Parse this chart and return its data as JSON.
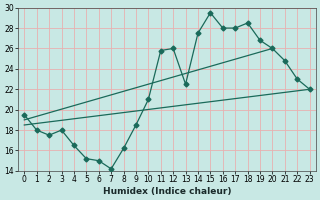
{
  "xlabel": "Humidex (Indice chaleur)",
  "background_color": "#c8e8e4",
  "grid_color": "#e8b0b0",
  "line_color": "#1a6a5a",
  "xlim": [
    -0.5,
    23.5
  ],
  "ylim": [
    14,
    30
  ],
  "xticks": [
    0,
    1,
    2,
    3,
    4,
    5,
    6,
    7,
    8,
    9,
    10,
    11,
    12,
    13,
    14,
    15,
    16,
    17,
    18,
    19,
    20,
    21,
    22,
    23
  ],
  "yticks": [
    14,
    16,
    18,
    20,
    22,
    24,
    26,
    28,
    30
  ],
  "x_main": [
    0,
    1,
    2,
    3,
    4,
    5,
    6,
    7,
    8,
    9,
    10,
    11,
    12,
    13,
    14,
    15,
    16,
    17,
    18,
    19,
    20,
    21,
    22,
    23
  ],
  "y_main": [
    19.5,
    18.0,
    17.5,
    18.0,
    16.5,
    15.2,
    15.0,
    14.2,
    16.2,
    18.5,
    21.0,
    25.8,
    26.0,
    22.5,
    27.5,
    29.5,
    28.0,
    28.0,
    28.5,
    26.8,
    26.0,
    24.8,
    23.0,
    22.0
  ],
  "line2_x": [
    0,
    23
  ],
  "line2_y": [
    18.5,
    22.0
  ],
  "line3_x": [
    0,
    20
  ],
  "line3_y": [
    19.0,
    26.0
  ],
  "figsize": [
    3.2,
    2.0
  ],
  "dpi": 100
}
